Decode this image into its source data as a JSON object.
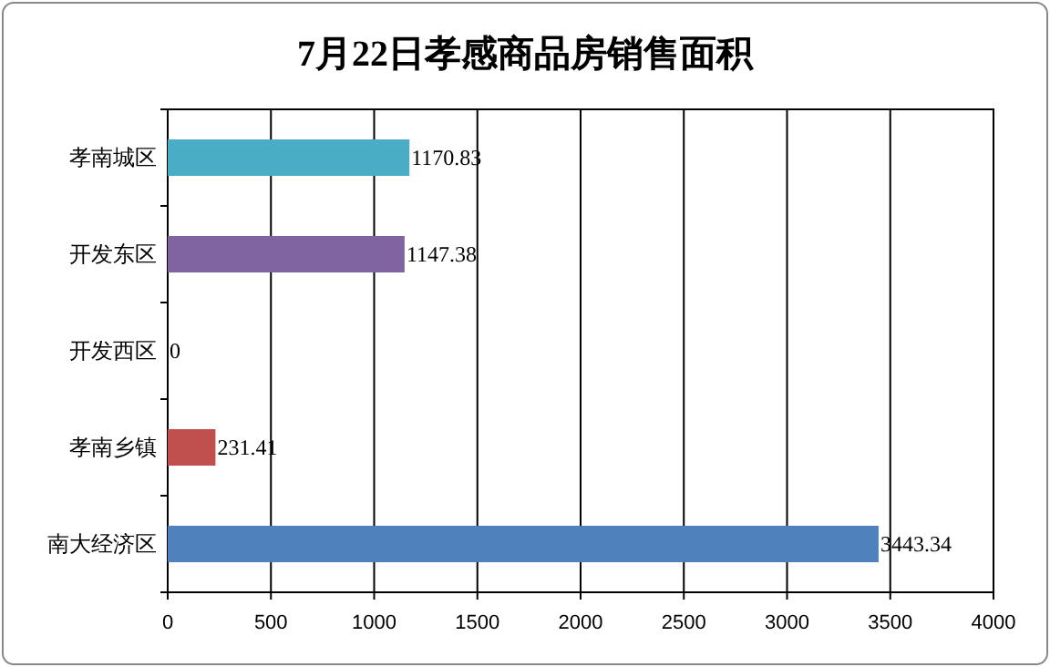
{
  "chart_data": {
    "type": "bar",
    "orientation": "horizontal",
    "title": "7月22日孝感商品房销售面积",
    "categories": [
      "孝南城区",
      "开发东区",
      "开发西区",
      "孝南乡镇",
      "南大经济区"
    ],
    "values": [
      1170.83,
      1147.38,
      0,
      231.41,
      3443.34
    ],
    "colors": [
      "#4bacc6",
      "#8064a2",
      "#9bbb59",
      "#c0504d",
      "#4f81bd"
    ],
    "xlim": [
      0,
      4000
    ],
    "xticks": [
      0,
      500,
      1000,
      1500,
      2000,
      2500,
      3000,
      3500,
      4000
    ],
    "grid": "x",
    "data_labels": true
  }
}
